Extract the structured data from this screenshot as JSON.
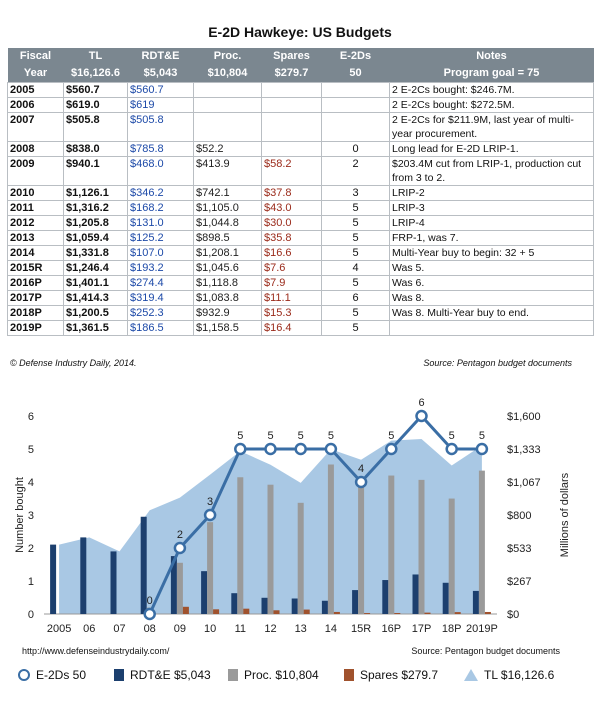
{
  "title": "E-2D Hawkeye: US Budgets",
  "table": {
    "headers_top": [
      "Fiscal",
      "TL",
      "RDT&E",
      "Proc.",
      "Spares",
      "E-2Ds",
      "Notes"
    ],
    "headers_bottom": [
      "Year",
      "$16,126.6",
      "$5,043",
      "$10,804",
      "$279.7",
      "50",
      "Program goal = 75"
    ],
    "rows": [
      [
        "2005",
        "$560.7",
        "$560.7",
        "",
        "",
        "",
        "2 E-2Cs bought: $246.7M."
      ],
      [
        "2006",
        "$619.0",
        "$619",
        "",
        "",
        "",
        "2 E-2Cs bought: $272.5M."
      ],
      [
        "2007",
        "$505.8",
        "$505.8",
        "",
        "",
        "",
        "2 E-2Cs for $211.9M, last year of multi-year procurement."
      ],
      [
        "2008",
        "$838.0",
        "$785.8",
        "$52.2",
        "",
        "0",
        "Long lead for E-2D LRIP-1."
      ],
      [
        "2009",
        "$940.1",
        "$468.0",
        "$413.9",
        "$58.2",
        "2",
        "$203.4M cut from LRIP-1, production cut from 3 to 2."
      ],
      [
        "2010",
        "$1,126.1",
        "$346.2",
        "$742.1",
        "$37.8",
        "3",
        "LRIP-2"
      ],
      [
        "2011",
        "$1,316.2",
        "$168.2",
        "$1,105.0",
        "$43.0",
        "5",
        "LRIP-3"
      ],
      [
        "2012",
        "$1,205.8",
        "$131.0",
        "$1,044.8",
        "$30.0",
        "5",
        "LRIP-4"
      ],
      [
        "2013",
        "$1,059.4",
        "$125.2",
        "$898.5",
        "$35.8",
        "5",
        "FRP-1, was 7."
      ],
      [
        "2014",
        "$1,331.8",
        "$107.0",
        "$1,208.1",
        "$16.6",
        "5",
        "Multi-Year buy to begin: 32 + 5"
      ],
      [
        "2015R",
        "$1,246.4",
        "$193.2",
        "$1,045.6",
        "$7.6",
        "4",
        "Was 5."
      ],
      [
        "2016P",
        "$1,401.1",
        "$274.4",
        "$1,118.8",
        "$7.9",
        "5",
        "Was 6."
      ],
      [
        "2017P",
        "$1,414.3",
        "$319.4",
        "$1,083.8",
        "$11.1",
        "6",
        "Was 8."
      ],
      [
        "2018P",
        "$1,200.5",
        "$252.3",
        "$932.9",
        "$15.3",
        "5",
        "Was 8. Multi-Year buy to end."
      ],
      [
        "2019P",
        "$1,361.5",
        "$186.5",
        "$1,158.5",
        "$16.4",
        "5",
        ""
      ]
    ],
    "credit_left": "© Defense Industry Daily, 2014.",
    "credit_right": "Source: Pentagon budget documents"
  },
  "chart_data": {
    "type": "bar",
    "categories": [
      "2005",
      "06",
      "07",
      "08",
      "09",
      "10",
      "11",
      "12",
      "13",
      "14",
      "15R",
      "16P",
      "17P",
      "18P",
      "2019P"
    ],
    "ylabel_left": "Number bought",
    "ylabel_right": "Millions of dollars",
    "ylim_left": [
      0,
      6
    ],
    "yticks_left": [
      "0",
      "1",
      "2",
      "3",
      "4",
      "5",
      "6"
    ],
    "ylim_right": [
      0,
      1600
    ],
    "yticks_right": [
      "$0",
      "$267",
      "$533",
      "$800",
      "$1,067",
      "$1,333",
      "$1,600"
    ],
    "e2d_points": [
      null,
      null,
      null,
      0,
      2,
      3,
      5,
      5,
      5,
      5,
      4,
      5,
      6,
      5,
      5
    ],
    "e2d_labels": [
      "",
      "",
      "",
      "0",
      "2",
      "3",
      "5",
      "5",
      "5",
      "5",
      "4",
      "5",
      "6",
      "5",
      "5"
    ],
    "series": [
      {
        "name": "E-2Ds 50",
        "values": [
          null,
          null,
          null,
          0,
          2,
          3,
          5,
          5,
          5,
          5,
          4,
          5,
          6,
          5,
          5
        ]
      },
      {
        "name": "RDT&E $5,043",
        "values": [
          560.7,
          619,
          505.8,
          785.8,
          468.0,
          346.2,
          168.2,
          131.0,
          125.2,
          107.0,
          193.2,
          274.4,
          319.4,
          252.3,
          186.5
        ]
      },
      {
        "name": "Proc. $10,804",
        "values": [
          0,
          0,
          0,
          52.2,
          413.9,
          742.1,
          1105.0,
          1044.8,
          898.5,
          1208.1,
          1045.6,
          1118.8,
          1083.8,
          932.9,
          1158.5
        ]
      },
      {
        "name": "Spares $279.7",
        "values": [
          0,
          0,
          0,
          0,
          58.2,
          37.8,
          43.0,
          30.0,
          35.8,
          16.6,
          7.6,
          7.9,
          11.1,
          15.3,
          16.4
        ]
      },
      {
        "name": "TL $16,126.6",
        "values": [
          560.7,
          619.0,
          505.8,
          838.0,
          940.1,
          1126.1,
          1316.2,
          1205.8,
          1059.4,
          1331.8,
          1246.4,
          1401.1,
          1414.3,
          1200.5,
          1361.5
        ]
      }
    ],
    "colors": {
      "e2d": "#3a6ea5",
      "rdte": "#1c3f6e",
      "proc": "#9a9a9a",
      "spares": "#a0522d",
      "tl": "#a9c8e4"
    }
  },
  "footer": {
    "url": "http://www.defenseindustrydaily.com/",
    "source": "Source: Pentagon budget documents"
  },
  "legend": [
    {
      "label": "E-2Ds 50",
      "icon": "circle-marker"
    },
    {
      "label": "RDT&E $5,043",
      "icon": "square"
    },
    {
      "label": "Proc. $10,804",
      "icon": "square"
    },
    {
      "label": "Spares $279.7",
      "icon": "square"
    },
    {
      "label": "TL $16,126.6",
      "icon": "triangle"
    }
  ]
}
